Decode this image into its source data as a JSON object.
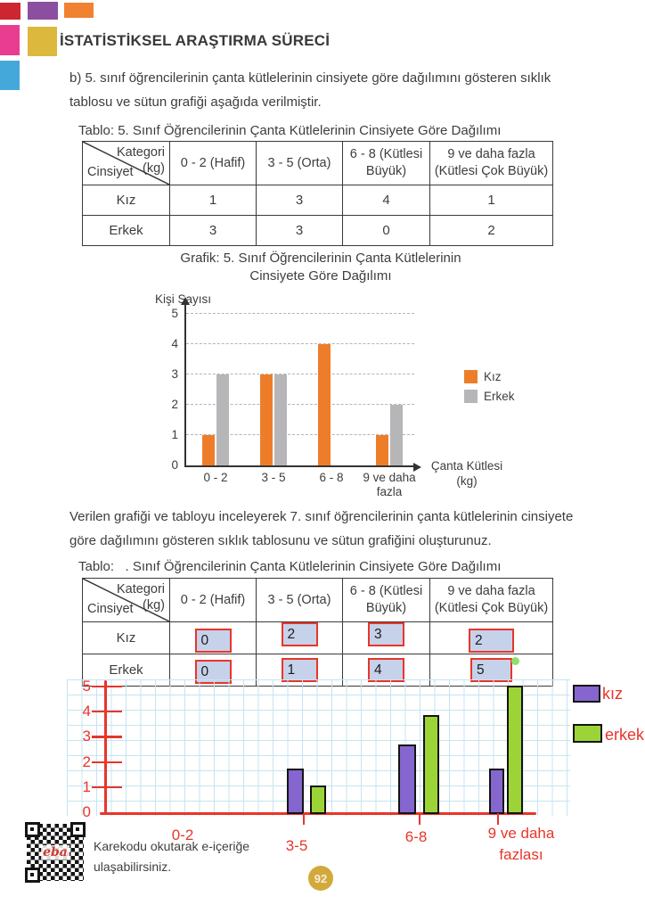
{
  "header": {
    "title": "İSTATİSTİKSEL ARAŞTIRMA SÜRECİ"
  },
  "intro": {
    "text": "b) 5. sınıf öğrencilerinin çanta kütlelerinin cinsiyete göre dağılımını gösteren sıklık tablosu ve sütun grafiği aşağıda verilmiştir."
  },
  "task": {
    "text": "Verilen grafiği ve tabloyu inceleyerek 7. sınıf öğrencilerinin çanta kütlelerinin cinsiyete göre dağılımını gösteren sıklık tablosunu ve sütun grafiğini oluşturunuz."
  },
  "table1": {
    "caption": "Tablo: 5. Sınıf Öğrencilerinin Çanta Kütlelerinin Cinsiyete Göre Dağılımı",
    "corner": {
      "kategori": "Kategori",
      "kg": "(kg)",
      "cinsiyet": "Cinsiyet"
    },
    "columns": [
      "0 - 2 (Hafif)",
      "3 - 5 (Orta)",
      "6 - 8 (Kütlesi Büyük)",
      "9 ve daha fazla (Kütlesi Çok Büyük)"
    ],
    "rows": [
      {
        "label": "Kız",
        "values": [
          1,
          3,
          4,
          1
        ]
      },
      {
        "label": "Erkek",
        "values": [
          3,
          3,
          0,
          2
        ]
      }
    ]
  },
  "table2": {
    "caption": "Tablo:   . Sınıf Öğrencilerinin Çanta Kütlelerinin Cinsiyete Göre Dağılımı",
    "corner": {
      "kategori": "Kategori",
      "kg": "(kg)",
      "cinsiyet": "Cinsiyet"
    },
    "columns": [
      "0 - 2 (Hafif)",
      "3 - 5 (Orta)",
      "6 - 8 (Kütlesi Büyük)",
      "9 ve daha fazla (Kütlesi Çok Büyük)"
    ],
    "rows": [
      {
        "label": "Kız",
        "values": [
          0,
          2,
          3,
          2
        ]
      },
      {
        "label": "Erkek",
        "values": [
          0,
          1,
          4,
          5
        ]
      }
    ]
  },
  "chart_data": [
    {
      "type": "bar",
      "title": "Grafik: 5. Sınıf Öğrencilerinin Çanta Kütlelerinin Cinsiyete Göre Dağılımı",
      "categories": [
        "0 - 2",
        "3 - 5",
        "6 - 8",
        "9 ve daha fazla"
      ],
      "series": [
        {
          "name": "Kız",
          "color": "#ee7d2a",
          "values": [
            1,
            3,
            4,
            1
          ]
        },
        {
          "name": "Erkek",
          "color": "#b6b6b9",
          "values": [
            3,
            3,
            0,
            2
          ]
        }
      ],
      "xlabel": "Çanta Kütlesi (kg)",
      "ylabel": "Kişi Sayısı",
      "ylim": [
        0,
        5
      ],
      "grid": "horizontal-dashed",
      "legend_position": "right"
    },
    {
      "type": "bar",
      "style": "hand-drawn-on-graph-paper",
      "categories": [
        "0-2",
        "3-5",
        "6-8",
        "9 ve daha fazlası"
      ],
      "series": [
        {
          "name": "kız",
          "color": "#8566ce",
          "values": [
            0,
            2,
            3,
            2
          ]
        },
        {
          "name": "erkek",
          "color": "#9cd438",
          "values": [
            0,
            1,
            4,
            5
          ]
        }
      ],
      "ylim": [
        0,
        5
      ],
      "axis_color": "#e8352b",
      "legend_position": "right"
    }
  ],
  "footer": {
    "qr_logo": "eba",
    "qr_line1": "Karekodu okutarak e-içeriğe",
    "qr_line2": "ulaşabilirsiniz.",
    "page_number": "92"
  }
}
